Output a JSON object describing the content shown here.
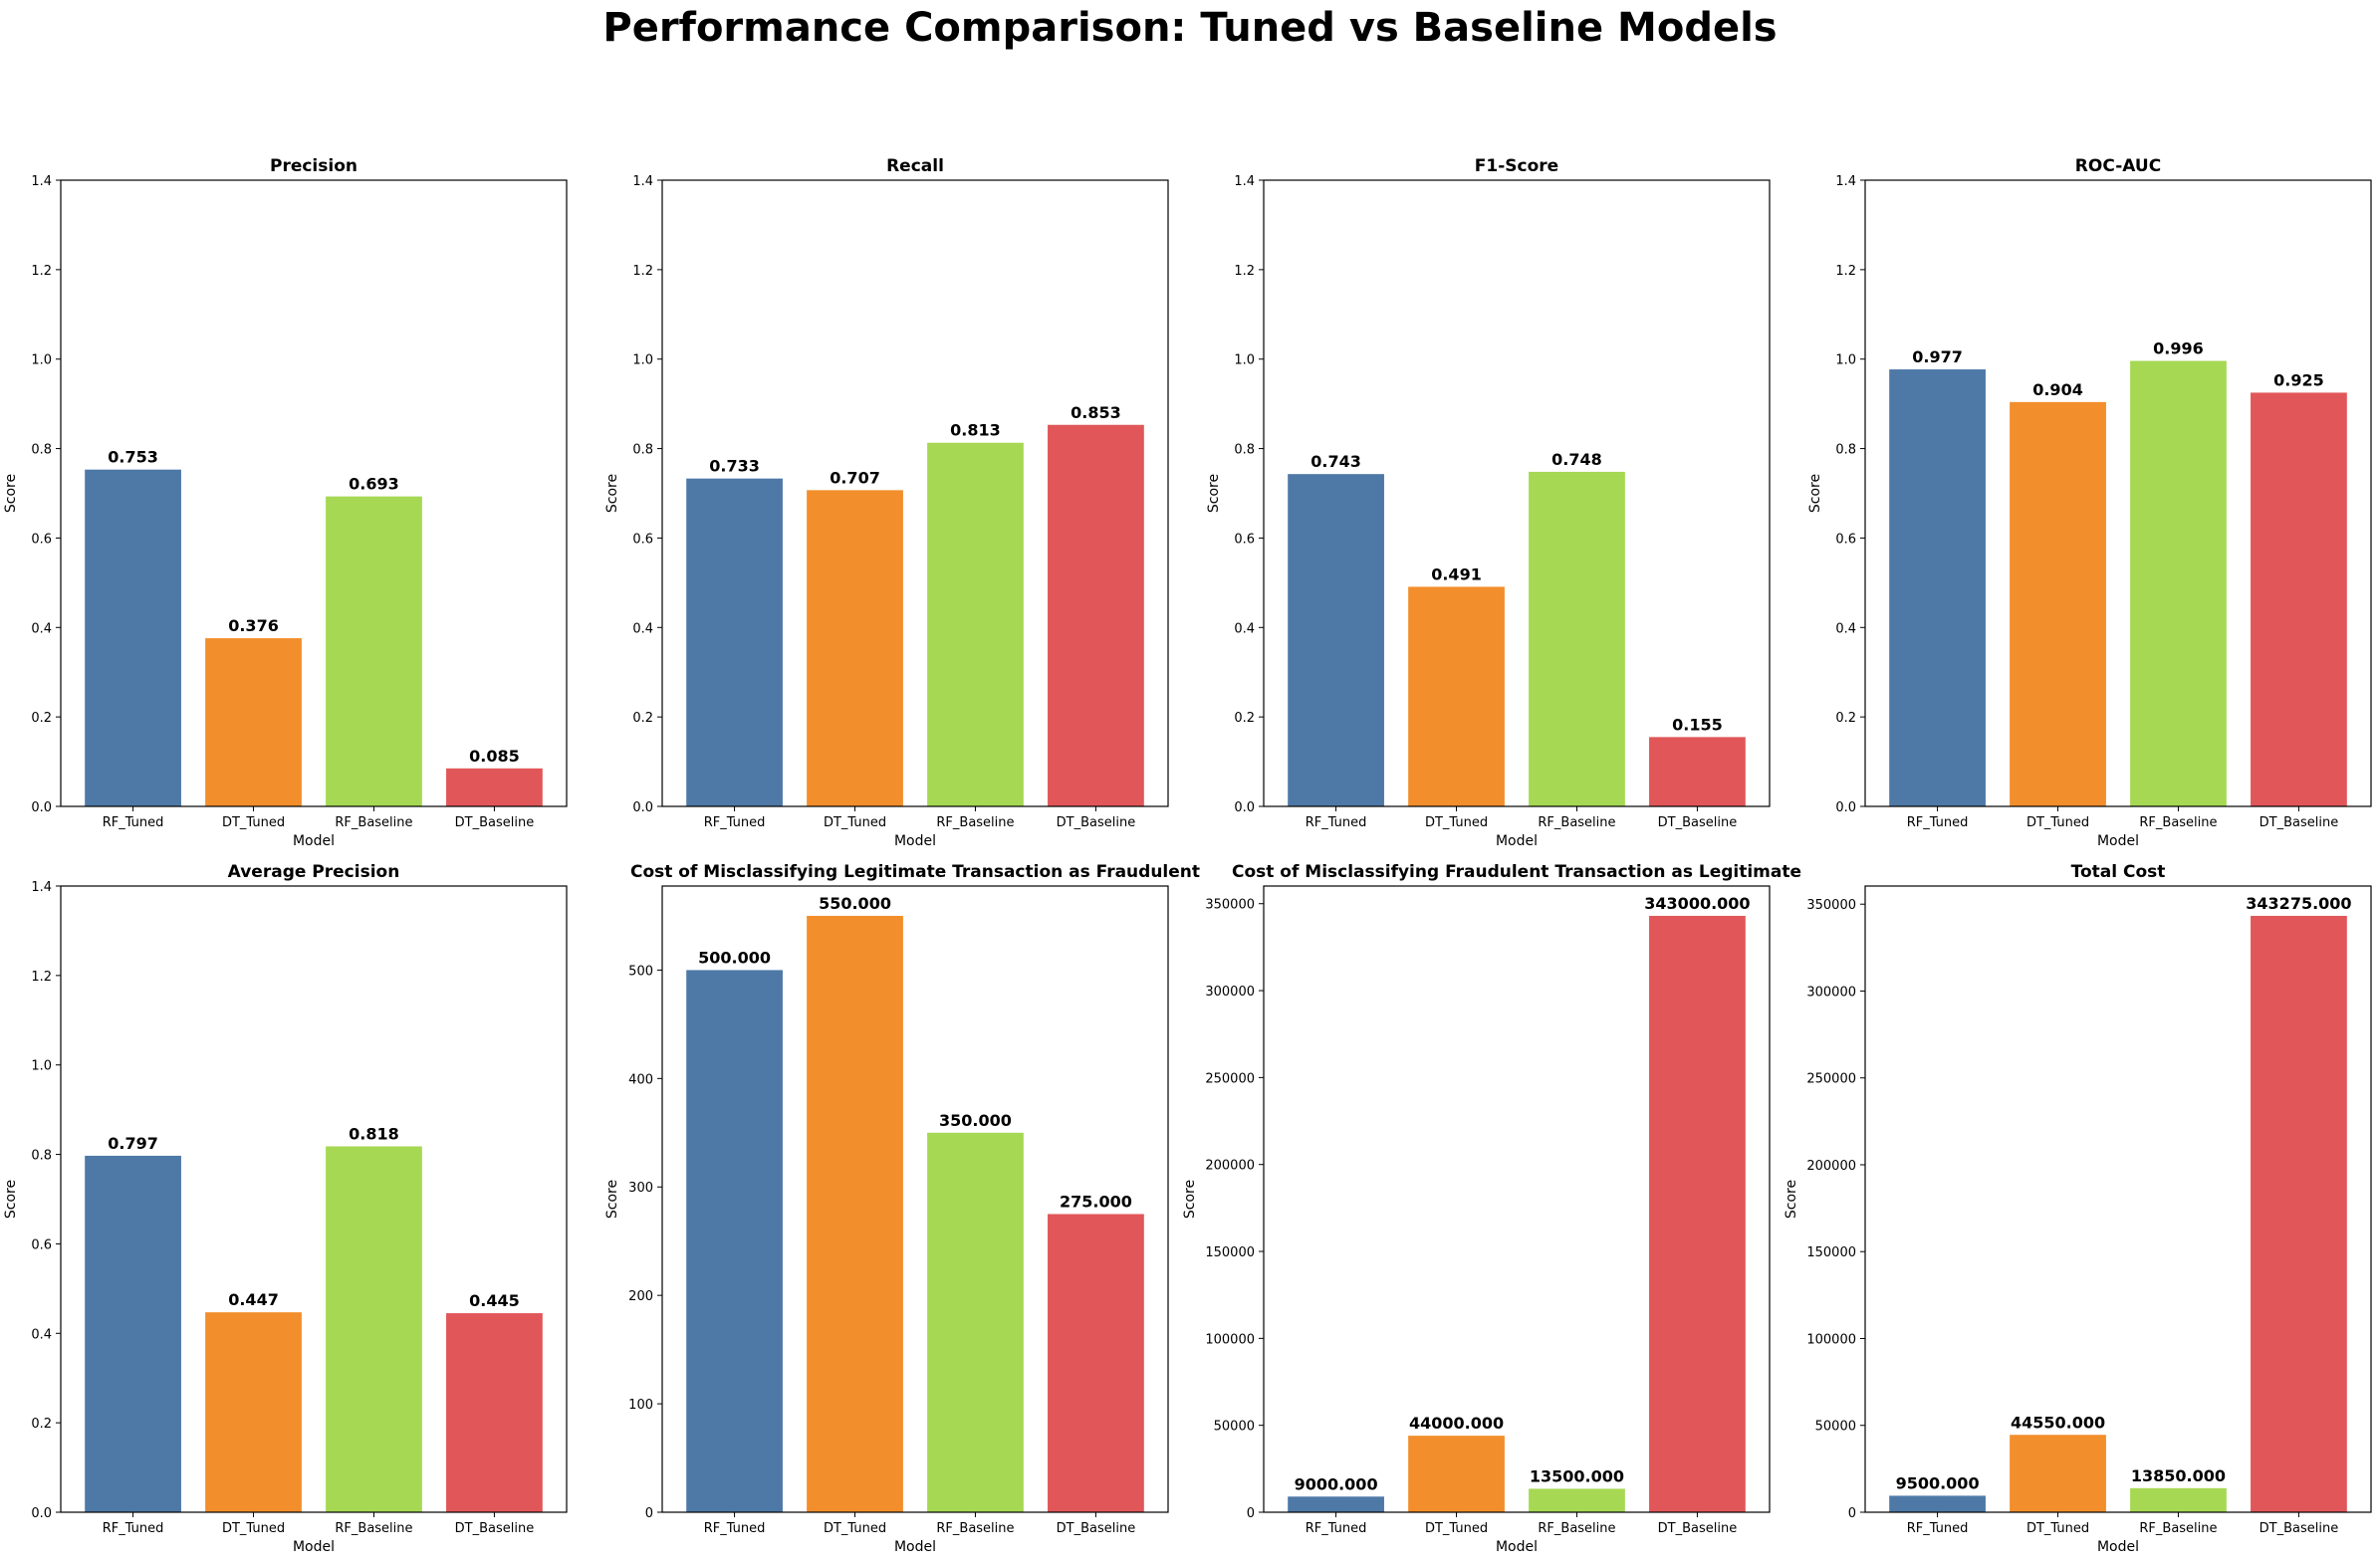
{
  "figure": {
    "title": "Performance Comparison: Tuned vs Baseline Models"
  },
  "colors": {
    "series": [
      "#4e79a7",
      "#f28e2b",
      "#a6d854",
      "#e15759"
    ]
  },
  "chart_data": [
    {
      "type": "bar",
      "title": "Precision",
      "xlabel": "Model",
      "ylabel": "Score",
      "categories": [
        "RF_Tuned",
        "DT_Tuned",
        "RF_Baseline",
        "DT_Baseline"
      ],
      "values": [
        0.753,
        0.376,
        0.693,
        0.085
      ],
      "value_labels": [
        "0.753",
        "0.376",
        "0.693",
        "0.085"
      ],
      "ylim": [
        0,
        1.4
      ],
      "yticks": [
        0.0,
        0.2,
        0.4,
        0.6,
        0.8,
        1.0,
        1.2,
        1.4
      ],
      "ytick_labels": [
        "0.0",
        "0.2",
        "0.4",
        "0.6",
        "0.8",
        "1.0",
        "1.2",
        "1.4"
      ],
      "grid": false
    },
    {
      "type": "bar",
      "title": "Recall",
      "xlabel": "Model",
      "ylabel": "Score",
      "categories": [
        "RF_Tuned",
        "DT_Tuned",
        "RF_Baseline",
        "DT_Baseline"
      ],
      "values": [
        0.733,
        0.707,
        0.813,
        0.853
      ],
      "value_labels": [
        "0.733",
        "0.707",
        "0.813",
        "0.853"
      ],
      "ylim": [
        0,
        1.4
      ],
      "yticks": [
        0.0,
        0.2,
        0.4,
        0.6,
        0.8,
        1.0,
        1.2,
        1.4
      ],
      "ytick_labels": [
        "0.0",
        "0.2",
        "0.4",
        "0.6",
        "0.8",
        "1.0",
        "1.2",
        "1.4"
      ],
      "grid": false
    },
    {
      "type": "bar",
      "title": "F1-Score",
      "xlabel": "Model",
      "ylabel": "Score",
      "categories": [
        "RF_Tuned",
        "DT_Tuned",
        "RF_Baseline",
        "DT_Baseline"
      ],
      "values": [
        0.743,
        0.491,
        0.748,
        0.155
      ],
      "value_labels": [
        "0.743",
        "0.491",
        "0.748",
        "0.155"
      ],
      "ylim": [
        0,
        1.4
      ],
      "yticks": [
        0.0,
        0.2,
        0.4,
        0.6,
        0.8,
        1.0,
        1.2,
        1.4
      ],
      "ytick_labels": [
        "0.0",
        "0.2",
        "0.4",
        "0.6",
        "0.8",
        "1.0",
        "1.2",
        "1.4"
      ],
      "grid": false
    },
    {
      "type": "bar",
      "title": "ROC-AUC",
      "xlabel": "Model",
      "ylabel": "Score",
      "categories": [
        "RF_Tuned",
        "DT_Tuned",
        "RF_Baseline",
        "DT_Baseline"
      ],
      "values": [
        0.977,
        0.904,
        0.996,
        0.925
      ],
      "value_labels": [
        "0.977",
        "0.904",
        "0.996",
        "0.925"
      ],
      "ylim": [
        0,
        1.4
      ],
      "yticks": [
        0.0,
        0.2,
        0.4,
        0.6,
        0.8,
        1.0,
        1.2,
        1.4
      ],
      "ytick_labels": [
        "0.0",
        "0.2",
        "0.4",
        "0.6",
        "0.8",
        "1.0",
        "1.2",
        "1.4"
      ],
      "grid": false
    },
    {
      "type": "bar",
      "title": "Average Precision",
      "xlabel": "Model",
      "ylabel": "Score",
      "categories": [
        "RF_Tuned",
        "DT_Tuned",
        "RF_Baseline",
        "DT_Baseline"
      ],
      "values": [
        0.797,
        0.447,
        0.818,
        0.445
      ],
      "value_labels": [
        "0.797",
        "0.447",
        "0.818",
        "0.445"
      ],
      "ylim": [
        0,
        1.4
      ],
      "yticks": [
        0.0,
        0.2,
        0.4,
        0.6,
        0.8,
        1.0,
        1.2,
        1.4
      ],
      "ytick_labels": [
        "0.0",
        "0.2",
        "0.4",
        "0.6",
        "0.8",
        "1.0",
        "1.2",
        "1.4"
      ],
      "grid": false
    },
    {
      "type": "bar",
      "title": "Cost of Misclassifying Legitimate Transaction as Fraudulent",
      "xlabel": "Model",
      "ylabel": "Score",
      "categories": [
        "RF_Tuned",
        "DT_Tuned",
        "RF_Baseline",
        "DT_Baseline"
      ],
      "values": [
        500,
        550,
        350,
        275
      ],
      "value_labels": [
        "500.000",
        "550.000",
        "350.000",
        "275.000"
      ],
      "ylim": [
        0,
        577.5
      ],
      "yticks": [
        0,
        100,
        200,
        300,
        400,
        500
      ],
      "ytick_labels": [
        "0",
        "100",
        "200",
        "300",
        "400",
        "500"
      ],
      "grid": false
    },
    {
      "type": "bar",
      "title": "Cost of Misclassifying Fraudulent Transaction as Legitimate",
      "xlabel": "Model",
      "ylabel": "Score",
      "categories": [
        "RF_Tuned",
        "DT_Tuned",
        "RF_Baseline",
        "DT_Baseline"
      ],
      "values": [
        9000,
        44000,
        13500,
        343000
      ],
      "value_labels": [
        "9000.000",
        "44000.000",
        "13500.000",
        "343000.000"
      ],
      "ylim": [
        0,
        360150
      ],
      "yticks": [
        0,
        50000,
        100000,
        150000,
        200000,
        250000,
        300000,
        350000
      ],
      "ytick_labels": [
        "0",
        "50000",
        "100000",
        "150000",
        "200000",
        "250000",
        "300000",
        "350000"
      ],
      "grid": false
    },
    {
      "type": "bar",
      "title": "Total Cost",
      "xlabel": "Model",
      "ylabel": "Score",
      "categories": [
        "RF_Tuned",
        "DT_Tuned",
        "RF_Baseline",
        "DT_Baseline"
      ],
      "values": [
        9500,
        44550,
        13850,
        343275
      ],
      "value_labels": [
        "9500.000",
        "44550.000",
        "13850.000",
        "343275.000"
      ],
      "ylim": [
        0,
        360439
      ],
      "yticks": [
        0,
        50000,
        100000,
        150000,
        200000,
        250000,
        300000,
        350000
      ],
      "ytick_labels": [
        "0",
        "50000",
        "100000",
        "150000",
        "200000",
        "250000",
        "300000",
        "350000"
      ],
      "grid": false
    }
  ]
}
